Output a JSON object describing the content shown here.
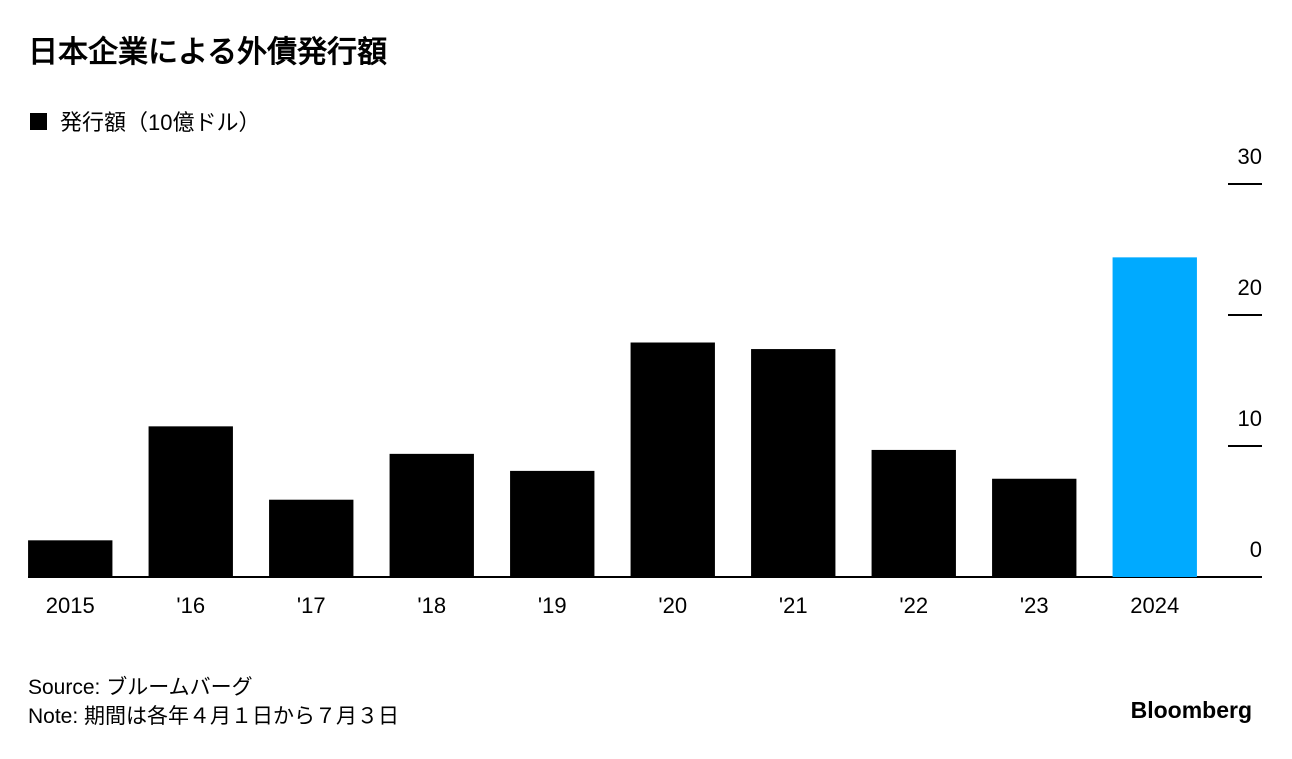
{
  "chart_data": {
    "type": "bar",
    "title": "日本企業による外債発行額",
    "legend": "発行額（10億ドル）",
    "categories": [
      "2015",
      "'16",
      "'17",
      "'18",
      "'19",
      "'20",
      "'21",
      "'22",
      "'23",
      "2024"
    ],
    "values": [
      2.8,
      11.5,
      5.9,
      9.4,
      8.1,
      17.9,
      17.4,
      9.7,
      7.5,
      24.4
    ],
    "colors": [
      "#000000",
      "#000000",
      "#000000",
      "#000000",
      "#000000",
      "#000000",
      "#000000",
      "#000000",
      "#000000",
      "#00aaff"
    ],
    "ylim": [
      0,
      30
    ],
    "yticks": [
      0,
      10,
      20,
      30
    ],
    "source": "Source: ブルームバーグ",
    "note": "Note: 期間は各年４月１日から７月３日",
    "brand": "Bloomberg"
  }
}
